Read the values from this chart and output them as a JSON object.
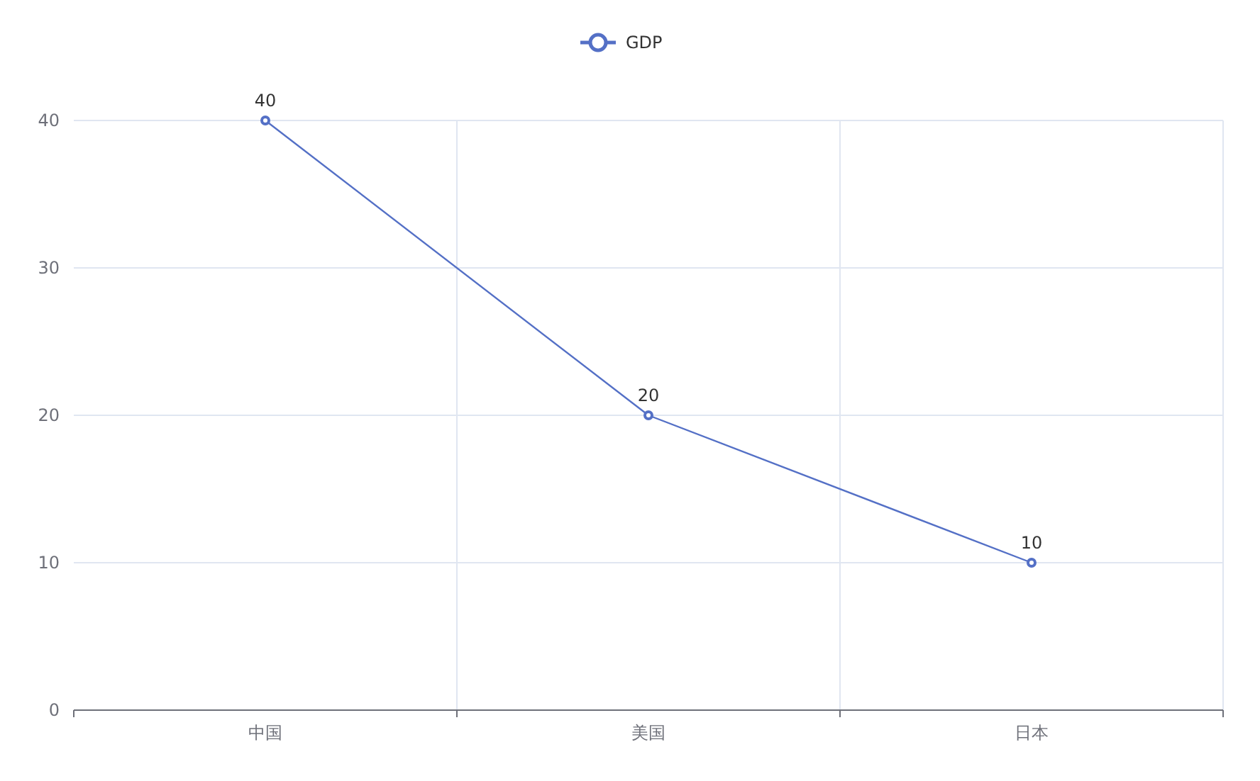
{
  "chart_data": {
    "type": "line",
    "categories": [
      "中国",
      "美国",
      "日本"
    ],
    "series": [
      {
        "name": "GDP",
        "color": "#5470c6",
        "values": [
          40,
          20,
          10
        ]
      }
    ],
    "ylim": [
      0,
      40
    ],
    "yticks": [
      0,
      10,
      20,
      30,
      40
    ],
    "grid": true,
    "legend": "top",
    "marker": "circle",
    "data_labels": true
  }
}
